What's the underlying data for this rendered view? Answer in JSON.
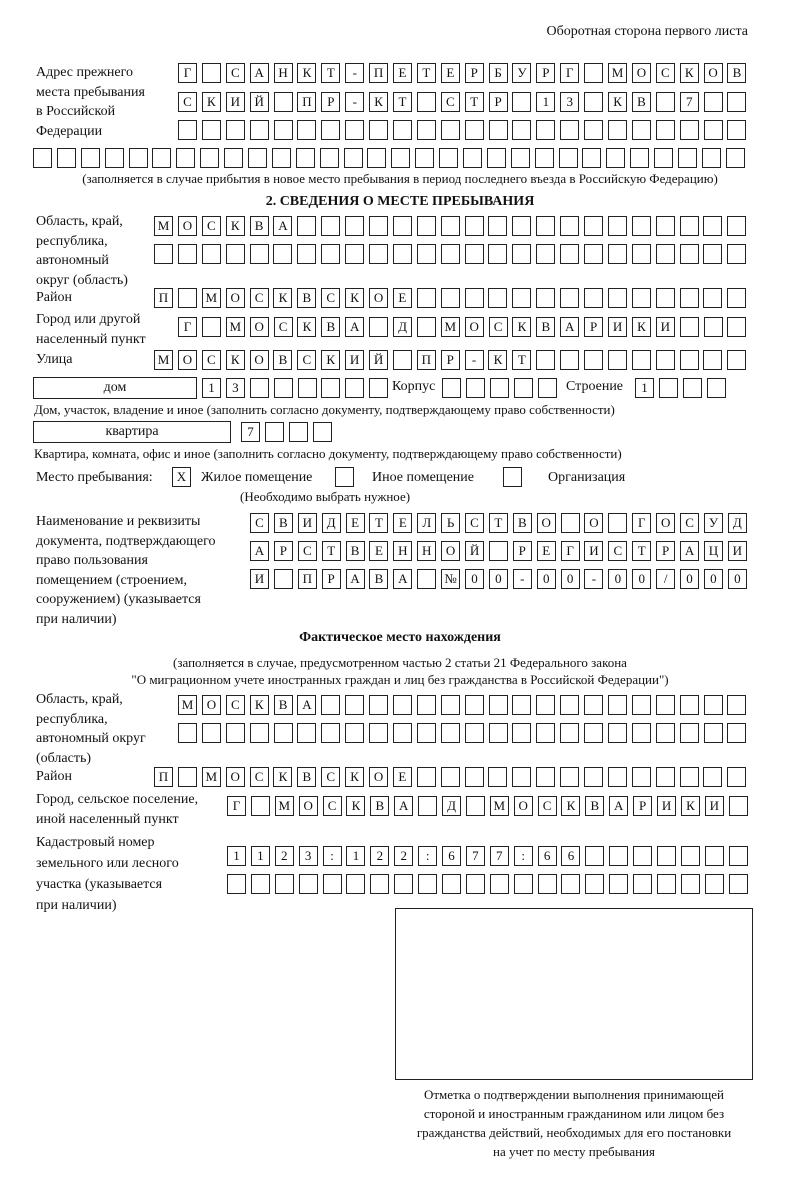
{
  "header": "Оборотная сторона первого листа",
  "prev_address": {
    "label": [
      "Адрес прежнего",
      "места пребывания",
      "в Российской",
      "Федерации"
    ],
    "rows": [
      [
        "Г",
        "",
        "С",
        "А",
        "Н",
        "К",
        "Т",
        "-",
        "П",
        "Е",
        "Т",
        "Е",
        "Р",
        "Б",
        "У",
        "Р",
        "Г",
        "",
        "М",
        "О",
        "С",
        "К",
        "О",
        "В"
      ],
      [
        "С",
        "К",
        "И",
        "Й",
        "",
        "П",
        "Р",
        "-",
        "К",
        "Т",
        "",
        "С",
        "Т",
        "Р",
        "",
        "1",
        "3",
        "",
        "К",
        "В",
        "",
        "7",
        "",
        ""
      ],
      [
        "",
        "",
        "",
        "",
        "",
        "",
        "",
        "",
        "",
        "",
        "",
        "",
        "",
        "",
        "",
        "",
        "",
        "",
        "",
        "",
        "",
        "",
        "",
        ""
      ],
      [
        "",
        "",
        "",
        "",
        "",
        "",
        "",
        "",
        "",
        "",
        "",
        "",
        "",
        "",
        "",
        "",
        "",
        "",
        "",
        "",
        "",
        "",
        "",
        "",
        "",
        "",
        "",
        "",
        "",
        ""
      ]
    ],
    "note": "(заполняется в случае прибытия в новое место пребывания в период последнего въезда в Российскую Федерацию)"
  },
  "section2": {
    "title": "2. СВЕДЕНИЯ О МЕСТЕ ПРЕБЫВАНИЯ",
    "region": {
      "label": [
        "Область, край,",
        "республика,",
        "автономный",
        "округ (область)"
      ],
      "rows": [
        [
          "М",
          "О",
          "С",
          "К",
          "В",
          "А",
          "",
          "",
          "",
          "",
          "",
          "",
          "",
          "",
          "",
          "",
          "",
          "",
          "",
          "",
          "",
          "",
          "",
          "",
          ""
        ],
        [
          "",
          "",
          "",
          "",
          "",
          "",
          "",
          "",
          "",
          "",
          "",
          "",
          "",
          "",
          "",
          "",
          "",
          "",
          "",
          "",
          "",
          "",
          "",
          "",
          ""
        ]
      ]
    },
    "district": {
      "label": "Район",
      "row": [
        "П",
        "",
        "М",
        "О",
        "С",
        "К",
        "В",
        "С",
        "К",
        "О",
        "Е",
        "",
        "",
        "",
        "",
        "",
        "",
        "",
        "",
        "",
        "",
        "",
        "",
        "",
        ""
      ]
    },
    "city": {
      "label": [
        "Город или другой",
        "населенный пункт"
      ],
      "row": [
        "Г",
        "",
        "М",
        "О",
        "С",
        "К",
        "В",
        "А",
        "",
        "Д",
        "",
        "М",
        "О",
        "С",
        "К",
        "В",
        "А",
        "Р",
        "И",
        "К",
        "И",
        "",
        "",
        ""
      ]
    },
    "street": {
      "label": "Улица",
      "row": [
        "М",
        "О",
        "С",
        "К",
        "О",
        "В",
        "С",
        "К",
        "И",
        "Й",
        "",
        "П",
        "Р",
        "-",
        "К",
        "Т",
        "",
        "",
        "",
        "",
        "",
        "",
        "",
        "",
        ""
      ]
    },
    "house": {
      "type": "дом",
      "number": [
        "1",
        "3",
        "",
        "",
        "",
        "",
        "",
        ""
      ],
      "korpus_label": "Корпус",
      "korpus": [
        "",
        "",
        "",
        "",
        ""
      ],
      "building_label": "Строение",
      "building": [
        "1",
        "",
        "",
        ""
      ],
      "note": "Дом, участок, владение и иное (заполнить согласно документу, подтверждающему право собственности)"
    },
    "apartment": {
      "type": "квартира",
      "number": [
        "7",
        "",
        "",
        ""
      ],
      "note": "Квартира, комната, офис и иное (заполнить согласно документу, подтверждающему право собственности)"
    },
    "place": {
      "label": "Место пребывания:",
      "options": [
        {
          "mark": "X",
          "label": "Жилое помещение"
        },
        {
          "mark": "",
          "label": "Иное помещение"
        },
        {
          "mark": "",
          "label": "Организация"
        }
      ],
      "note": "(Необходимо выбрать нужное)"
    },
    "document": {
      "label": [
        "Наименование и реквизиты",
        "документа, подтверждающего",
        "право пользования",
        "помещением (строением,",
        "сооружением) (указывается",
        "при наличии)"
      ],
      "rows": [
        [
          "С",
          "В",
          "И",
          "Д",
          "Е",
          "Т",
          "Е",
          "Л",
          "Ь",
          "С",
          "Т",
          "В",
          "О",
          "",
          "О",
          "",
          "Г",
          "О",
          "С",
          "У",
          "Д"
        ],
        [
          "А",
          "Р",
          "С",
          "Т",
          "В",
          "Е",
          "Н",
          "Н",
          "О",
          "Й",
          "",
          "Р",
          "Е",
          "Г",
          "И",
          "С",
          "Т",
          "Р",
          "А",
          "Ц",
          "И"
        ],
        [
          "И",
          "",
          "П",
          "Р",
          "А",
          "В",
          "А",
          "",
          "№",
          "0",
          "0",
          "-",
          "0",
          "0",
          "-",
          "0",
          "0",
          "/",
          "0",
          "0",
          "0"
        ]
      ]
    }
  },
  "actual": {
    "title": "Фактическое место нахождения",
    "note": [
      "(заполняется в случае, предусмотренном частью 2 статьи 21 Федерального закона",
      "\"О миграционном учете иностранных граждан и лиц без гражданства в Российской Федерации\")"
    ],
    "region": {
      "label": [
        "Область, край,",
        "республика,",
        "автономный округ",
        "(область)"
      ],
      "rows": [
        [
          "М",
          "О",
          "С",
          "К",
          "В",
          "А",
          "",
          "",
          "",
          "",
          "",
          "",
          "",
          "",
          "",
          "",
          "",
          "",
          "",
          "",
          "",
          "",
          "",
          ""
        ],
        [
          "",
          "",
          "",
          "",
          "",
          "",
          "",
          "",
          "",
          "",
          "",
          "",
          "",
          "",
          "",
          "",
          "",
          "",
          "",
          "",
          "",
          "",
          "",
          ""
        ]
      ]
    },
    "district": {
      "label": "Район",
      "row": [
        "П",
        "",
        "М",
        "О",
        "С",
        "К",
        "В",
        "С",
        "К",
        "О",
        "Е",
        "",
        "",
        "",
        "",
        "",
        "",
        "",
        "",
        "",
        "",
        "",
        "",
        "",
        ""
      ]
    },
    "city": {
      "label": [
        "Город, сельское поселение,",
        "иной населенный пункт"
      ],
      "row": [
        "Г",
        "",
        "М",
        "О",
        "С",
        "К",
        "В",
        "А",
        "",
        "Д",
        "",
        "М",
        "О",
        "С",
        "К",
        "В",
        "А",
        "Р",
        "И",
        "К",
        "И",
        ""
      ]
    },
    "cadastral": {
      "label": [
        "Кадастровый номер",
        "земельного или лесного",
        "участка (указывается",
        "при наличии)"
      ],
      "rows": [
        [
          "1",
          "1",
          "2",
          "3",
          ":",
          "1",
          "2",
          "2",
          ":",
          "6",
          "7",
          "7",
          ":",
          "6",
          "6",
          "",
          "",
          "",
          "",
          "",
          "",
          ""
        ],
        [
          "",
          "",
          "",
          "",
          "",
          "",
          "",
          "",
          "",
          "",
          "",
          "",
          "",
          "",
          "",
          "",
          "",
          "",
          "",
          "",
          "",
          ""
        ]
      ]
    }
  },
  "stamp": {
    "caption": [
      "Отметка о подтверждении выполнения принимающей",
      "стороной и иностранным гражданином или лицом без",
      "гражданства действий, необходимых для его постановки",
      "на учет по месту пребывания"
    ]
  }
}
